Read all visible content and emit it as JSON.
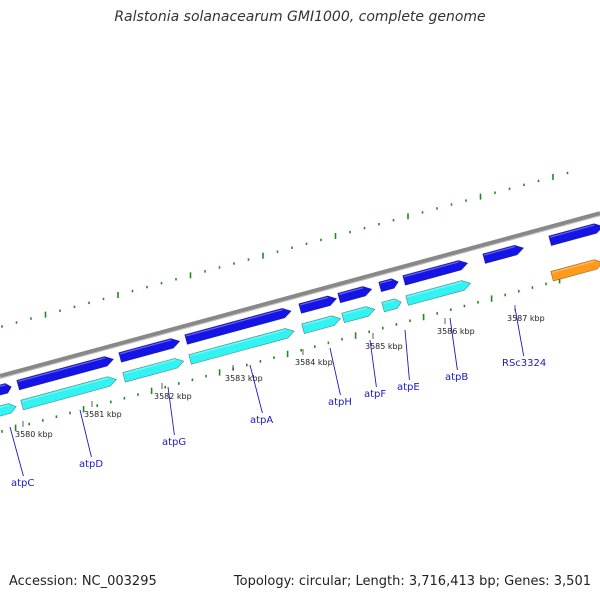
{
  "title": "Ralstonia solanacearum GMI1000, complete genome",
  "footer": {
    "accession": "Accession: NC_003295",
    "summary": "Topology: circular; Length: 3,716,413 bp; Genes: 3,501"
  },
  "colors": {
    "backbone": "#888888",
    "cds_forward": "#1414e6",
    "gene_forward": "#33f2f2",
    "other_feature": "#ff9a1a",
    "ticks": "#1f8a1f",
    "label": "#1a1ac8"
  },
  "scale_ticks": [
    {
      "text": "3580 kbp",
      "kbp": 3580
    },
    {
      "text": "3581 kbp",
      "kbp": 3581
    },
    {
      "text": "3582 kbp",
      "kbp": 3582
    },
    {
      "text": "3583 kbp",
      "kbp": 3583
    },
    {
      "text": "3584 kbp",
      "kbp": 3584
    },
    {
      "text": "3585 kbp",
      "kbp": 3585
    },
    {
      "text": "3586 kbp",
      "kbp": 3586
    },
    {
      "text": "3587 kbp",
      "kbp": 3587
    }
  ],
  "genes": [
    {
      "name": "atpC"
    },
    {
      "name": "atpD"
    },
    {
      "name": "atpG"
    },
    {
      "name": "atpA"
    },
    {
      "name": "atpH"
    },
    {
      "name": "atpF"
    },
    {
      "name": "atpE"
    },
    {
      "name": "atpB"
    },
    {
      "name": "RSc3324"
    }
  ]
}
